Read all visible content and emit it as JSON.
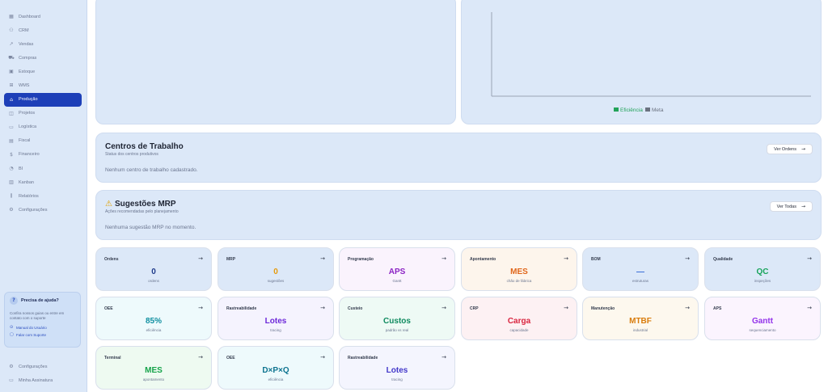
{
  "sidebar": {
    "items": [
      {
        "label": "Dashboard",
        "icon": "grid-icon",
        "glyph": "▦"
      },
      {
        "label": "CRM",
        "icon": "users-icon",
        "glyph": "⚇"
      },
      {
        "label": "Vendas",
        "icon": "trending-up-icon",
        "glyph": "↗"
      },
      {
        "label": "Compras",
        "icon": "cart-icon",
        "glyph": "⛟"
      },
      {
        "label": "Estoque",
        "icon": "box-icon",
        "glyph": "▣"
      },
      {
        "label": "WMS",
        "icon": "warehouse-icon",
        "glyph": "⊞"
      },
      {
        "label": "Produção",
        "icon": "factory-icon",
        "glyph": "⌂",
        "active": true
      },
      {
        "label": "Projetos",
        "icon": "folder-icon",
        "glyph": "◫"
      },
      {
        "label": "Logística",
        "icon": "truck-icon",
        "glyph": "▭"
      },
      {
        "label": "Fiscal",
        "icon": "receipt-icon",
        "glyph": "▤"
      },
      {
        "label": "Financeiro",
        "icon": "dollar-icon",
        "glyph": "$"
      },
      {
        "label": "BI",
        "icon": "chart-icon",
        "glyph": "◔"
      },
      {
        "label": "Kanban",
        "icon": "kanban-icon",
        "glyph": "▥"
      },
      {
        "label": "Relatórios",
        "icon": "bar-chart-icon",
        "glyph": "⫼"
      },
      {
        "label": "Configurações",
        "icon": "gear-icon",
        "glyph": "⚙"
      }
    ],
    "help": {
      "title": "Precisa de ajuda?",
      "text": "Confira nossos guias ou entre em contato com o suporte",
      "manual": "Manual do Usuário",
      "support": "Falar com Suporte"
    },
    "bottom": [
      {
        "label": "Configurações",
        "icon": "gear-icon",
        "glyph": "⚙"
      },
      {
        "label": "Minha Assinatura",
        "icon": "card-icon",
        "glyph": "▭"
      }
    ]
  },
  "chart": {
    "legend": [
      "Eficiência",
      "Meta"
    ],
    "colors": {
      "eficiencia": "#22a35a",
      "meta": "#6b7280"
    }
  },
  "centros": {
    "title": "Centros de Trabalho",
    "subtitle": "Status dos centros produtivos",
    "button": "Ver Ordens",
    "empty": "Nenhum centro de trabalho cadastrado."
  },
  "mrp": {
    "title": "Sugestões MRP",
    "subtitle": "Ações recomendadas pelo planejamento",
    "button": "Ver Todas",
    "empty": "Nenhuma sugestão MRP no momento."
  },
  "tiles": [
    {
      "label": "Ordens",
      "value": "0",
      "sub": "ordens",
      "color": "#1e3a8a",
      "bg": "#dce8f8"
    },
    {
      "label": "MRP",
      "value": "0",
      "sub": "sugestões",
      "color": "#e69a0c",
      "bg": "#dce8f8"
    },
    {
      "label": "Programação",
      "value": "APS",
      "sub": "Gantt",
      "color": "#8b23c4",
      "bg": "#faf3fd"
    },
    {
      "label": "Apontamento",
      "value": "MES",
      "sub": "chão de fábrica",
      "color": "#e0661a",
      "bg": "#fdf5ec"
    },
    {
      "label": "BOM",
      "value": "—",
      "sub": "estruturas",
      "color": "#3b6fd8",
      "bg": "#dce8f8"
    },
    {
      "label": "Qualidade",
      "value": "QC",
      "sub": "inspeções",
      "color": "#17a35a",
      "bg": "#dce8f8"
    },
    {
      "label": "OEE",
      "value": "85%",
      "sub": "eficiência",
      "color": "#0f8fa0",
      "bg": "#eefafc"
    },
    {
      "label": "Rastreabilidade",
      "value": "Lotes",
      "sub": "tracing",
      "color": "#6d28d9",
      "bg": "#f5f3fe"
    },
    {
      "label": "Custeio",
      "value": "Custos",
      "sub": "padrão vs real",
      "color": "#0f8a5f",
      "bg": "#eefaf5"
    },
    {
      "label": "CRP",
      "value": "Carga",
      "sub": "capacidade",
      "color": "#d9253f",
      "bg": "#fdf1f3"
    },
    {
      "label": "Manutenção",
      "value": "MTBF",
      "sub": "industrial",
      "color": "#d97c0c",
      "bg": "#fdf8ee"
    },
    {
      "label": "APS",
      "value": "Gantt",
      "sub": "sequenciamento",
      "color": "#9333ea",
      "bg": "#fbf4fe"
    },
    {
      "label": "Terminal",
      "value": "MES",
      "sub": "apontamento",
      "color": "#16a34a",
      "bg": "#eefaf1"
    },
    {
      "label": "OEE",
      "value": "D×P×Q",
      "sub": "eficiência",
      "color": "#0e7490",
      "bg": "#eefafc"
    },
    {
      "label": "Rastreabilidade",
      "value": "Lotes",
      "sub": "tracing",
      "color": "#4338ca",
      "bg": "#f4f5fe"
    }
  ]
}
